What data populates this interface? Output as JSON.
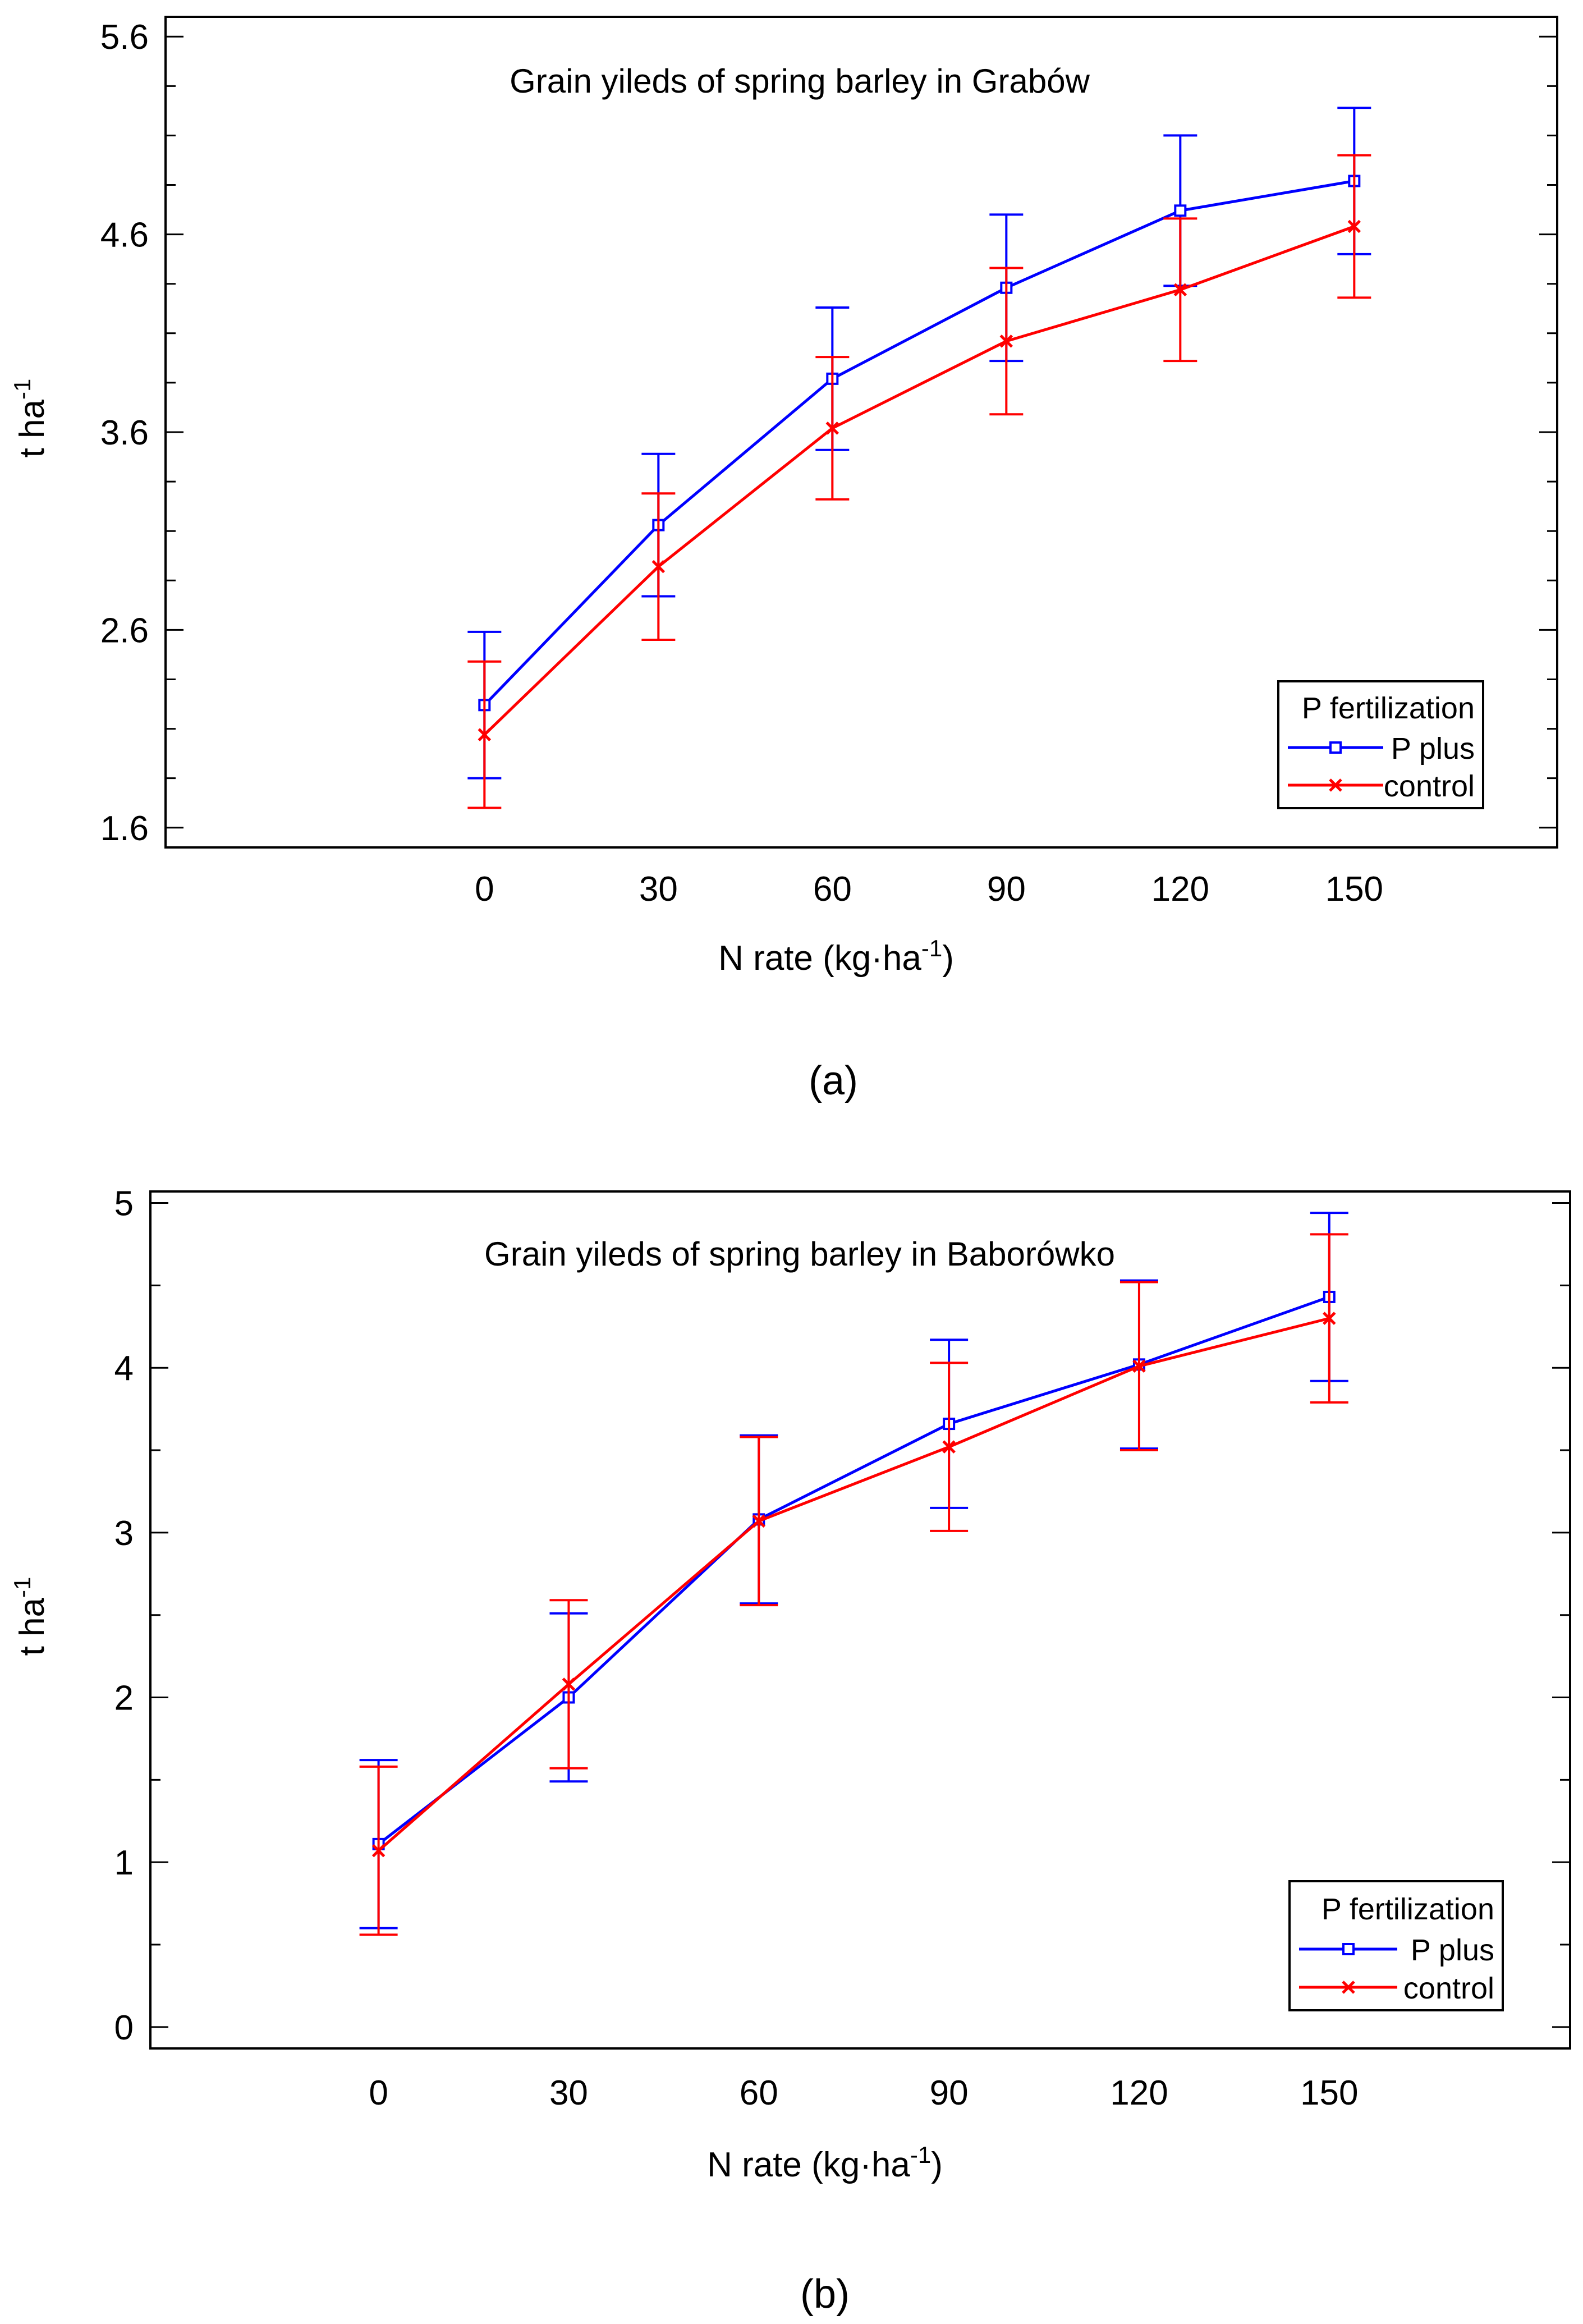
{
  "figure": {
    "panel_labels": [
      "(a)",
      "(b)"
    ]
  },
  "chart_data": [
    {
      "type": "line",
      "title": "Grain yileds of spring barley in Grabów",
      "xlabel": "N rate (kg·ha",
      "xlabel_sup": "-1",
      "xlabel_end": ")",
      "ylabel": "t ha",
      "ylabel_sup": "-1",
      "x": [
        0,
        30,
        60,
        90,
        120,
        150
      ],
      "xlim": [
        -55,
        185
      ],
      "ylim": [
        1.5,
        5.7
      ],
      "yticks": [
        1.6,
        2.6,
        3.6,
        4.6,
        5.6
      ],
      "ytick_labels": [
        "1.6",
        "2.6",
        "3.6",
        "4.6",
        "5.6"
      ],
      "legend": {
        "title": "P fertilization",
        "position": "bottom-right"
      },
      "series": [
        {
          "name": "P plus",
          "color": "#0000ff",
          "marker": "square",
          "values": [
            2.22,
            3.13,
            3.87,
            4.33,
            4.72,
            4.87
          ],
          "errors": [
            0.37,
            0.36,
            0.36,
            0.37,
            0.38,
            0.37
          ]
        },
        {
          "name": "control",
          "color": "#ff0000",
          "marker": "x",
          "values": [
            2.07,
            2.92,
            3.62,
            4.06,
            4.32,
            4.64
          ],
          "errors": [
            0.37,
            0.37,
            0.36,
            0.37,
            0.36,
            0.36
          ]
        }
      ]
    },
    {
      "type": "line",
      "title": "Grain yileds of spring barley in Baborówko",
      "xlabel": "N rate (kg·ha",
      "xlabel_sup": "-1",
      "xlabel_end": ")",
      "ylabel": "t ha",
      "ylabel_sup": "-1",
      "x": [
        0,
        30,
        60,
        90,
        120,
        150
      ],
      "xlim": [
        -36,
        188
      ],
      "ylim": [
        -0.13,
        5.07
      ],
      "yticks": [
        0,
        1,
        2,
        3,
        4,
        5
      ],
      "ytick_labels": [
        "0",
        "1",
        "2",
        "3",
        "4",
        "5"
      ],
      "legend": {
        "title": "P fertilization",
        "position": "bottom-right"
      },
      "series": [
        {
          "name": "P plus",
          "color": "#0000ff",
          "marker": "square",
          "values": [
            1.11,
            2.0,
            3.08,
            3.66,
            4.02,
            4.43
          ],
          "errors": [
            0.51,
            0.51,
            0.51,
            0.51,
            0.51,
            0.51
          ]
        },
        {
          "name": "control",
          "color": "#ff0000",
          "marker": "x",
          "values": [
            1.07,
            2.08,
            3.07,
            3.52,
            4.01,
            4.3
          ],
          "errors": [
            0.51,
            0.51,
            0.51,
            0.51,
            0.51,
            0.51
          ]
        }
      ]
    }
  ]
}
